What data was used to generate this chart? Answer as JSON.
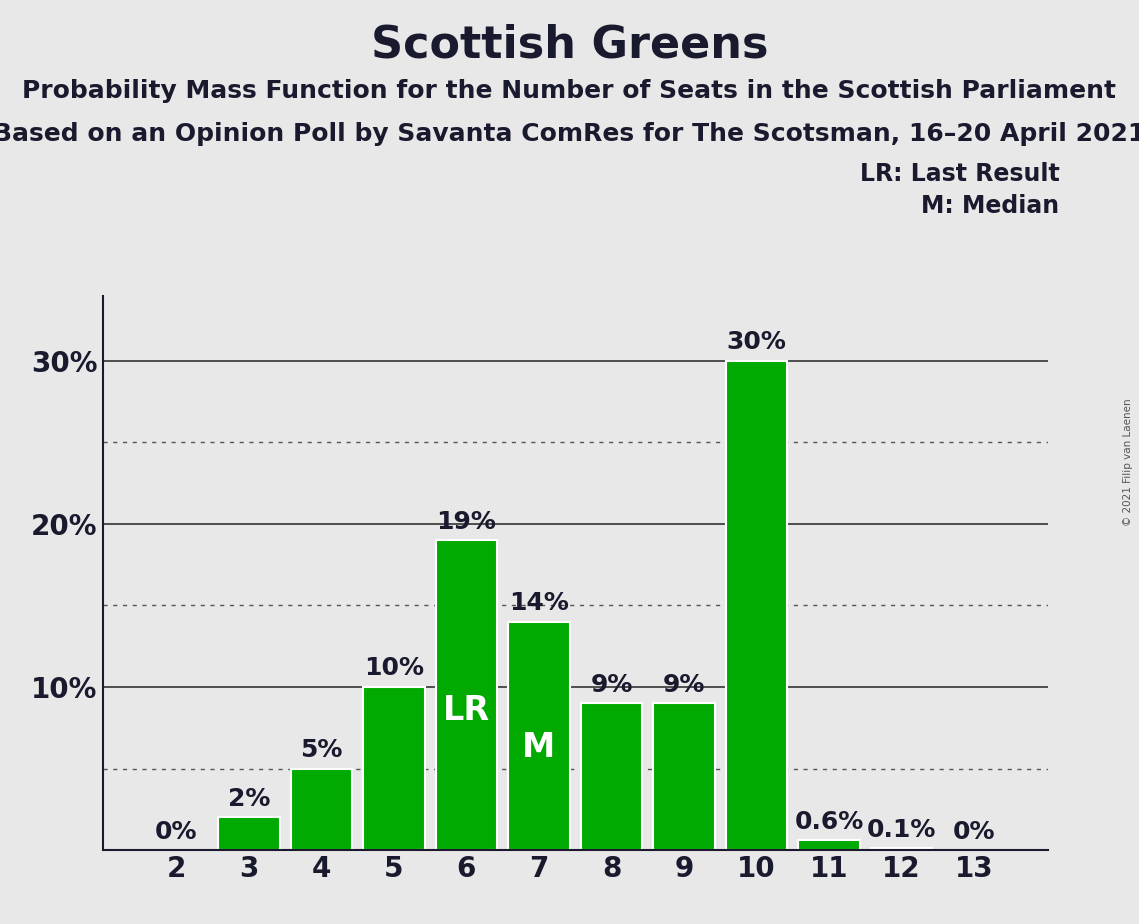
{
  "title": "Scottish Greens",
  "subtitle1": "Probability Mass Function for the Number of Seats in the Scottish Parliament",
  "subtitle2": "Based on an Opinion Poll by Savanta ComRes for The Scotsman, 16–20 April 2021",
  "copyright": "© 2021 Filip van Laenen",
  "categories": [
    2,
    3,
    4,
    5,
    6,
    7,
    8,
    9,
    10,
    11,
    12,
    13
  ],
  "values": [
    0.001,
    2.0,
    5.0,
    10.0,
    19.0,
    14.0,
    9.0,
    9.0,
    30.0,
    0.6,
    0.1,
    0.001
  ],
  "labels": [
    "0%",
    "2%",
    "5%",
    "10%",
    "19%",
    "14%",
    "9%",
    "9%",
    "30%",
    "0.6%",
    "0.1%",
    "0%"
  ],
  "bar_color": "#00AA00",
  "lr_index": 4,
  "m_index": 5,
  "lr_label": "LR",
  "m_label": "M",
  "legend_lr": "LR: Last Result",
  "legend_m": "M: Median",
  "yticks": [
    0,
    10,
    20,
    30
  ],
  "ytick_labels": [
    "",
    "10%",
    "20%",
    "30%"
  ],
  "ylim": [
    0,
    34
  ],
  "background_color": "#E8E8E8",
  "grid_color_solid": "#333333",
  "grid_color_dot": "#555555",
  "title_fontsize": 32,
  "subtitle_fontsize": 18,
  "bar_label_fontsize": 18,
  "axis_label_fontsize": 20,
  "legend_fontsize": 17,
  "dotted_grid_values": [
    5,
    15,
    25
  ],
  "solid_grid_values": [
    10,
    20,
    30
  ],
  "text_color": "#1a1a2e"
}
